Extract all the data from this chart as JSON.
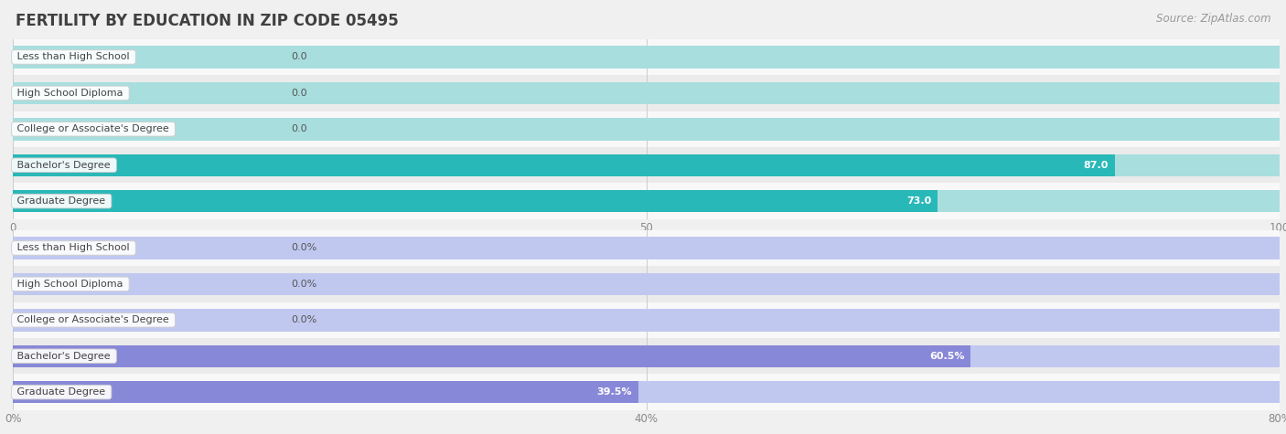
{
  "title": "FERTILITY BY EDUCATION IN ZIP CODE 05495",
  "source": "Source: ZipAtlas.com",
  "categories": [
    "Less than High School",
    "High School Diploma",
    "College or Associate's Degree",
    "Bachelor's Degree",
    "Graduate Degree"
  ],
  "chart1": {
    "values": [
      0.0,
      0.0,
      0.0,
      87.0,
      73.0
    ],
    "xlim": [
      0,
      100
    ],
    "xticks": [
      0.0,
      50.0,
      100.0
    ],
    "bar_color_light": "#a8dede",
    "bar_color_strong": "#29b8b8",
    "label_suffix": ""
  },
  "chart2": {
    "values": [
      0.0,
      0.0,
      0.0,
      60.5,
      39.5
    ],
    "xlim": [
      0,
      80
    ],
    "xticks": [
      0.0,
      40.0,
      80.0
    ],
    "bar_color_light": "#c0c8f0",
    "bar_color_strong": "#8888d8",
    "label_suffix": "%"
  },
  "bg_color": "#f0f0f0",
  "row_bg_even": "#f8f8f8",
  "row_bg_odd": "#ebebeb",
  "bar_height": 0.62,
  "title_color": "#404040",
  "title_fontsize": 12,
  "tick_fontsize": 8.5,
  "cat_fontsize": 8,
  "value_fontsize": 8,
  "source_fontsize": 8.5
}
